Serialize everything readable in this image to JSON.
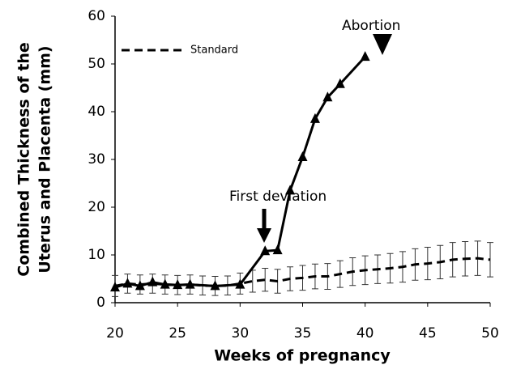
{
  "chart_data": {
    "type": "line",
    "x_label": "Weeks of pregnancy",
    "y_label": [
      "Combined Thickness of the",
      "Uterus and Placenta (mm)"
    ],
    "xlim": [
      20,
      50
    ],
    "xticks": [
      20,
      25,
      30,
      35,
      40,
      45,
      50
    ],
    "ylim": [
      0,
      60
    ],
    "yticks": [
      0,
      10,
      20,
      30,
      40,
      50,
      60
    ],
    "legend": "upper left",
    "series": [
      {
        "name": "Standard",
        "color": "#000000",
        "style": "dashed",
        "x": [
          20,
          21,
          22,
          23,
          24,
          25,
          26,
          27,
          28,
          29,
          30,
          31,
          32,
          33,
          34,
          35,
          36,
          37,
          38,
          39,
          40,
          41,
          42,
          43,
          44,
          45,
          46,
          47,
          48,
          49,
          50
        ],
        "values": [
          3.5,
          4,
          3.8,
          4,
          3.8,
          3.7,
          3.8,
          3.6,
          3.5,
          3.6,
          4,
          4.5,
          4.8,
          4.5,
          5,
          5.2,
          5.5,
          5.5,
          6,
          6.5,
          6.8,
          7,
          7.2,
          7.5,
          8,
          8.2,
          8.5,
          9,
          9.2,
          9.3,
          9
        ],
        "errors": [
          2.2,
          2,
          2,
          2,
          2,
          2,
          2,
          2,
          2,
          2,
          2.2,
          2.3,
          2.4,
          2.5,
          2.5,
          2.6,
          2.6,
          2.7,
          2.8,
          2.9,
          3,
          3,
          3.1,
          3.2,
          3.3,
          3.4,
          3.5,
          3.6,
          3.6,
          3.6,
          3.6
        ]
      },
      {
        "color": "#000000",
        "style": "solid",
        "marker": "triangle",
        "x": [
          20,
          21,
          22,
          23,
          24,
          25,
          26,
          28,
          30,
          32,
          33,
          34,
          35,
          36,
          37,
          38,
          40
        ],
        "values": [
          3.2,
          4,
          3.5,
          4.3,
          3.8,
          3.7,
          3.8,
          3.5,
          3.8,
          10.8,
          11,
          23.5,
          30.5,
          38.5,
          43,
          45.8,
          51.5
        ]
      }
    ],
    "annotations": [
      "First deviation",
      "Abortion"
    ]
  }
}
